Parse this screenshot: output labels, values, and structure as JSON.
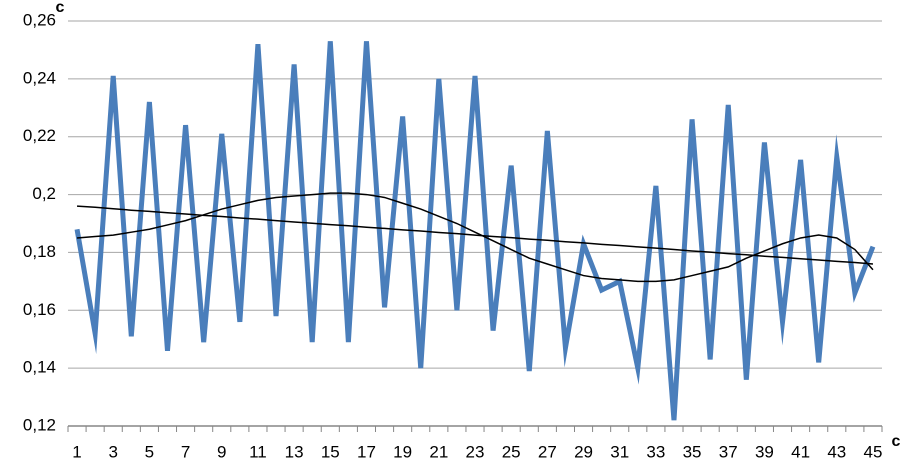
{
  "chart_data": {
    "type": "line",
    "x_label": "c",
    "y_label": "c",
    "categories": [
      "1",
      null,
      "3",
      null,
      "5",
      null,
      "7",
      null,
      "9",
      null,
      "11",
      null,
      "13",
      null,
      "15",
      null,
      "17",
      null,
      "19",
      null,
      "21",
      null,
      "23",
      null,
      "25",
      null,
      "27",
      null,
      "29",
      null,
      "31",
      null,
      "33",
      null,
      "35",
      null,
      "37",
      null,
      "39",
      null,
      "41",
      null,
      "43",
      null,
      "45"
    ],
    "series": [
      {
        "color": "#4a7ebb",
        "width": 5,
        "values": [
          0.188,
          0.152,
          0.241,
          0.151,
          0.232,
          0.146,
          0.224,
          0.149,
          0.221,
          0.156,
          0.252,
          0.158,
          0.245,
          0.149,
          0.253,
          0.149,
          0.253,
          0.161,
          0.227,
          0.14,
          0.24,
          0.16,
          0.241,
          0.153,
          0.21,
          0.139,
          0.222,
          0.147,
          0.183,
          0.167,
          0.17,
          0.14,
          0.203,
          0.122,
          0.226,
          0.143,
          0.231,
          0.136,
          0.218,
          0.156,
          0.212,
          0.142,
          0.213,
          0.166,
          0.182
        ]
      },
      {
        "color": "#000000",
        "width": 1.5,
        "values": [
          0.196,
          0.1956,
          0.1951,
          0.1946,
          0.1942,
          0.1937,
          0.1933,
          0.1928,
          0.1924,
          0.1919,
          0.1915,
          0.191,
          0.1905,
          0.1901,
          0.1896,
          0.1892,
          0.1887,
          0.1883,
          0.1878,
          0.1874,
          0.1869,
          0.1865,
          0.186,
          0.1855,
          0.1851,
          0.1846,
          0.1842,
          0.1837,
          0.1833,
          0.1828,
          0.1824,
          0.1819,
          0.1815,
          0.181,
          0.1805,
          0.1801,
          0.1796,
          0.1792,
          0.1787,
          0.1783,
          0.1778,
          0.1774,
          0.1769,
          0.1765,
          0.176
        ]
      },
      {
        "color": "#000000",
        "width": 1.5,
        "values": [
          0.185,
          0.1855,
          0.186,
          0.187,
          0.188,
          0.1895,
          0.191,
          0.193,
          0.195,
          0.1965,
          0.198,
          0.199,
          0.1995,
          0.2,
          0.2005,
          0.2005,
          0.2,
          0.199,
          0.197,
          0.195,
          0.1925,
          0.19,
          0.187,
          0.184,
          0.181,
          0.178,
          0.176,
          0.174,
          0.172,
          0.171,
          0.1705,
          0.17,
          0.17,
          0.1705,
          0.172,
          0.1735,
          0.175,
          0.178,
          0.1805,
          0.183,
          0.185,
          0.186,
          0.185,
          0.181,
          0.174
        ]
      }
    ],
    "ylim": [
      0.12,
      0.26
    ],
    "yticks": [
      {
        "value": 0.12,
        "label": "0,12"
      },
      {
        "value": 0.14,
        "label": "0,14"
      },
      {
        "value": 0.16,
        "label": "0,16"
      },
      {
        "value": 0.18,
        "label": "0,18"
      },
      {
        "value": 0.2,
        "label": "0,2"
      },
      {
        "value": 0.22,
        "label": "0,22"
      },
      {
        "value": 0.24,
        "label": "0,24"
      },
      {
        "value": 0.26,
        "label": "0,26"
      }
    ],
    "grid": true
  }
}
